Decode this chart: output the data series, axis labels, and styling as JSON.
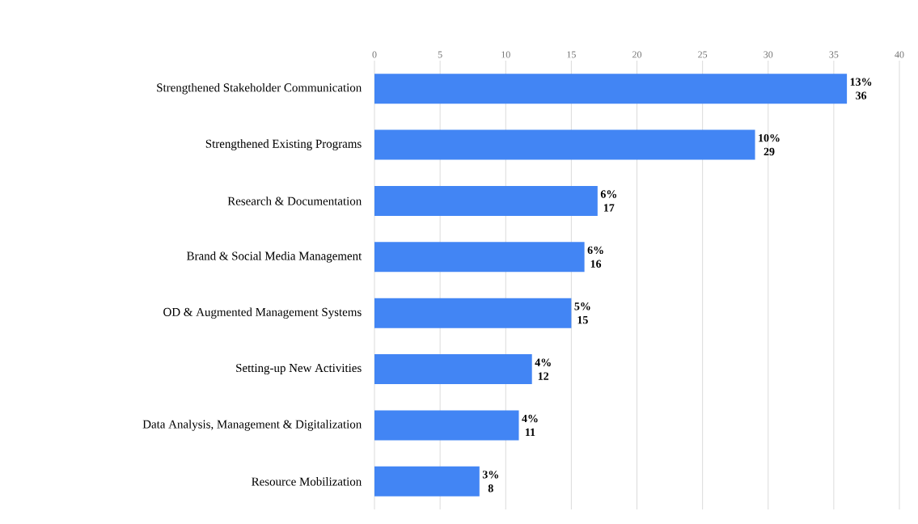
{
  "chart_data": {
    "type": "bar",
    "orientation": "horizontal",
    "categories": [
      "Strengthened Stakeholder Communication",
      "Strengthened Existing Programs",
      "Research & Documentation",
      "Brand & Social Media Management",
      "OD & Augmented Management Systems",
      "Setting-up New Activities",
      "Data Analysis, Management & Digitalization",
      "Resource Mobilization"
    ],
    "values": [
      36,
      29,
      17,
      16,
      15,
      12,
      11,
      8
    ],
    "color": "#4285f4",
    "xlim": [
      0,
      40
    ],
    "xticks": [
      0,
      5,
      10,
      15,
      20,
      25,
      30,
      35,
      40
    ],
    "grid": "x",
    "data_labels": true,
    "annotations": [
      {
        "text": "13%",
        "x": 36
      },
      {
        "text": "10%",
        "x": 29
      },
      {
        "text": "6%",
        "x": 17
      },
      {
        "text": "6%",
        "x": 16
      },
      {
        "text": "5%",
        "x": 15
      },
      {
        "text": "4%",
        "x": 12
      },
      {
        "text": "4%",
        "x": 11
      },
      {
        "text": "3%",
        "x": 8
      }
    ]
  }
}
